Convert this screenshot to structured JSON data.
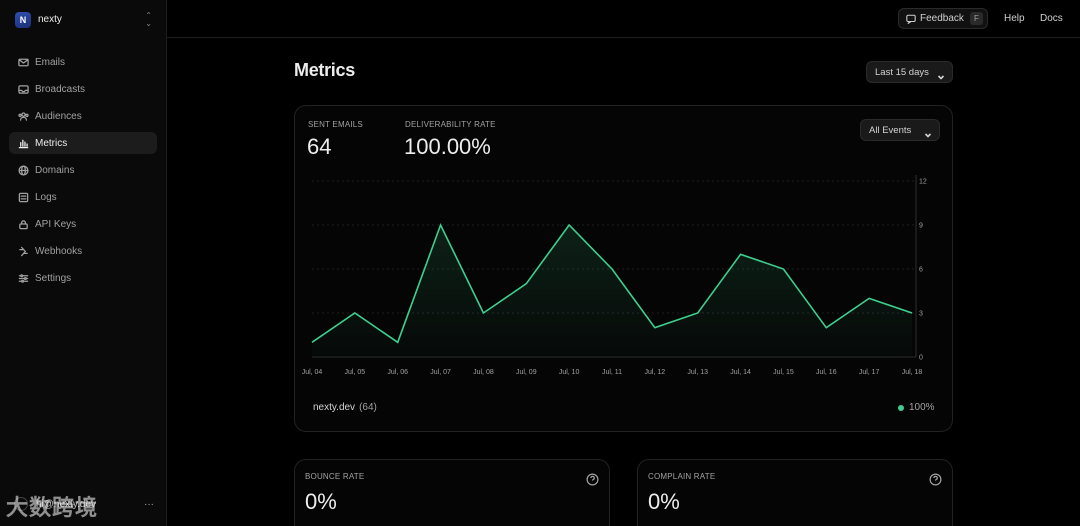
{
  "workspace": {
    "initial": "N",
    "name": "nexty"
  },
  "nav": [
    {
      "label": "Emails",
      "icon": "mail-icon",
      "active": false
    },
    {
      "label": "Broadcasts",
      "icon": "inbox-icon",
      "active": false
    },
    {
      "label": "Audiences",
      "icon": "users-icon",
      "active": false
    },
    {
      "label": "Metrics",
      "icon": "bar-chart-icon",
      "active": true
    },
    {
      "label": "Domains",
      "icon": "globe-icon",
      "active": false
    },
    {
      "label": "Logs",
      "icon": "logs-icon",
      "active": false
    },
    {
      "label": "API Keys",
      "icon": "lock-icon",
      "active": false
    },
    {
      "label": "Webhooks",
      "icon": "webhook-icon",
      "active": false
    },
    {
      "label": "Settings",
      "icon": "sliders-icon",
      "active": false
    }
  ],
  "user": {
    "email": "hi@nexty.dev",
    "more": "···"
  },
  "topbar": {
    "feedback_label": "Feedback",
    "feedback_key": "F",
    "help_label": "Help",
    "docs_label": "Docs"
  },
  "page": {
    "title": "Metrics",
    "range_label": "Last 15 days"
  },
  "summary": {
    "sent_label": "SENT EMAILS",
    "sent_value": "64",
    "deliverability_label": "DELIVERABILITY RATE",
    "deliverability_value": "100.00%",
    "events_label": "All Events"
  },
  "legend": {
    "name": "nexty.dev",
    "count": "(64)",
    "pct": "100%",
    "color": "#3ecf8e"
  },
  "bounce": {
    "label": "BOUNCE RATE",
    "value": "0%"
  },
  "complain": {
    "label": "COMPLAIN RATE",
    "value": "0%"
  },
  "watermark": "大数跨境",
  "chart_data": {
    "type": "area",
    "x": [
      "Jul, 04",
      "Jul, 05",
      "Jul, 06",
      "Jul, 07",
      "Jul, 08",
      "Jul, 09",
      "Jul, 10",
      "Jul, 11",
      "Jul, 12",
      "Jul, 13",
      "Jul, 14",
      "Jul, 15",
      "Jul, 16",
      "Jul, 17",
      "Jul, 18"
    ],
    "series": [
      {
        "name": "nexty.dev",
        "values": [
          1,
          3,
          1,
          9,
          3,
          5,
          9,
          6,
          2,
          3,
          7,
          6,
          2,
          4,
          3
        ]
      }
    ],
    "yticks": [
      0,
      3,
      6,
      9,
      12
    ],
    "ylim": [
      0,
      12
    ],
    "grid": true,
    "line_color": "#3ecf8e",
    "title": "",
    "xlabel": "",
    "ylabel": ""
  }
}
